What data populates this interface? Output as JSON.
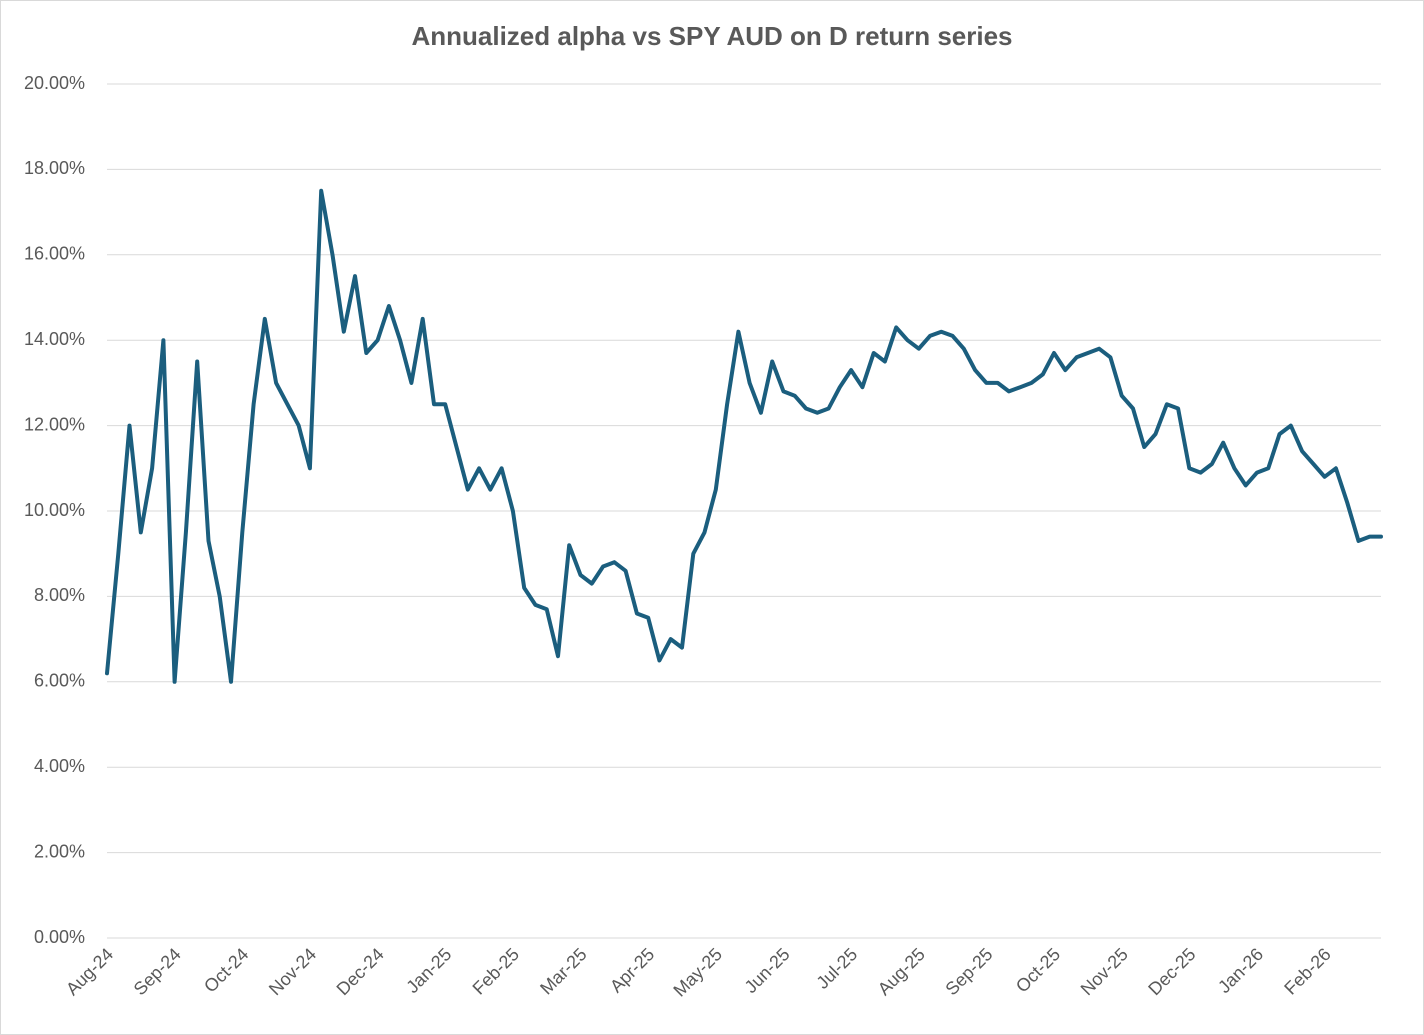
{
  "chart_data": {
    "type": "line",
    "title": "Annualized alpha vs SPY AUD on D return series",
    "categories": [
      "Aug-24",
      null,
      null,
      null,
      null,
      null,
      "Sep-24",
      null,
      null,
      null,
      null,
      null,
      "Oct-24",
      null,
      null,
      null,
      null,
      null,
      "Nov-24",
      null,
      null,
      null,
      null,
      null,
      "Dec-24",
      null,
      null,
      null,
      null,
      null,
      "Jan-25",
      null,
      null,
      null,
      null,
      null,
      "Feb-25",
      null,
      null,
      null,
      null,
      null,
      "Mar-25",
      null,
      null,
      null,
      null,
      null,
      "Apr-25",
      null,
      null,
      null,
      null,
      null,
      "May-25",
      null,
      null,
      null,
      null,
      null,
      "Jun-25",
      null,
      null,
      null,
      null,
      null,
      "Jul-25",
      null,
      null,
      null,
      null,
      null,
      "Aug-25",
      null,
      null,
      null,
      null,
      null,
      "Sep-25",
      null,
      null,
      null,
      null,
      null,
      "Oct-25",
      null,
      null,
      null,
      null,
      null,
      "Nov-25",
      null,
      null,
      null,
      null,
      null,
      "Dec-25",
      null,
      null,
      null,
      null,
      null,
      "Jan-26",
      null,
      null,
      null,
      null,
      null,
      "Feb-26",
      null,
      null,
      null,
      null,
      null
    ],
    "series": [
      {
        "color": "#1b5e7e",
        "values": [
          6.2,
          9.0,
          12.0,
          9.5,
          11.0,
          14.0,
          6.0,
          9.5,
          13.5,
          9.3,
          8.0,
          6.0,
          9.5,
          12.5,
          14.5,
          13.0,
          12.5,
          12.0,
          11.0,
          17.5,
          16.0,
          14.2,
          15.5,
          13.7,
          14.0,
          14.8,
          14.0,
          13.0,
          14.5,
          12.5,
          12.5,
          11.5,
          10.5,
          11.0,
          10.5,
          11.0,
          10.0,
          8.2,
          7.8,
          7.7,
          6.6,
          9.2,
          8.5,
          8.3,
          8.7,
          8.8,
          8.6,
          7.6,
          7.5,
          6.5,
          7.0,
          6.8,
          9.0,
          9.5,
          10.5,
          12.5,
          14.2,
          13.0,
          12.3,
          13.5,
          12.8,
          12.7,
          12.4,
          12.3,
          12.4,
          12.9,
          13.3,
          12.9,
          13.7,
          13.5,
          14.3,
          14.0,
          13.8,
          14.1,
          14.2,
          14.1,
          13.8,
          13.3,
          13.0,
          13.0,
          12.8,
          12.9,
          13.0,
          13.2,
          13.7,
          13.3,
          13.6,
          13.7,
          13.8,
          13.6,
          12.7,
          12.4,
          11.5,
          11.8,
          12.5,
          12.4,
          11.0,
          10.9,
          11.1,
          11.6,
          11.0,
          10.6,
          10.9,
          11.0,
          11.8,
          12.0,
          11.4,
          11.1,
          10.8,
          11.0,
          10.2,
          9.3,
          9.4,
          9.4
        ]
      }
    ],
    "ylim": [
      0,
      20
    ],
    "yticks": [
      {
        "value": 0,
        "label": "0.00%"
      },
      {
        "value": 2,
        "label": "2.00%"
      },
      {
        "value": 4,
        "label": "4.00%"
      },
      {
        "value": 6,
        "label": "6.00%"
      },
      {
        "value": 8,
        "label": "8.00%"
      },
      {
        "value": 10,
        "label": "10.00%"
      },
      {
        "value": 12,
        "label": "12.00%"
      },
      {
        "value": 14,
        "label": "14.00%"
      },
      {
        "value": 16,
        "label": "16.00%"
      },
      {
        "value": 18,
        "label": "18.00%"
      },
      {
        "value": 20,
        "label": "20.00%"
      }
    ],
    "grid": true
  }
}
